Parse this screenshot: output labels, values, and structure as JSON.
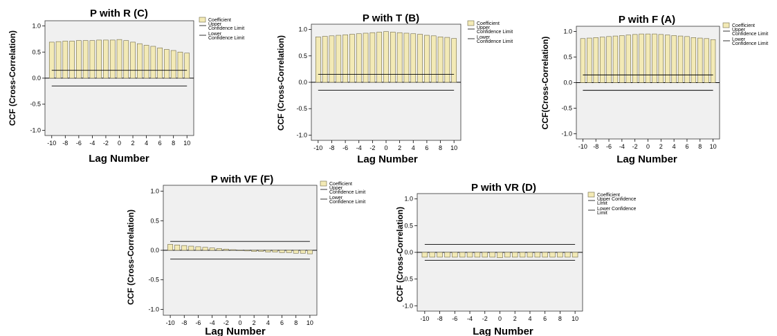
{
  "colors": {
    "bar_fill": "#f3eab6",
    "bar_stroke": "#6d6746",
    "plot_bg": "#f0f0f0"
  },
  "chart_data": [
    {
      "type": "bar",
      "title": "P with R (C)",
      "ylabel": "CCF (Cross-Correlation)",
      "xlabel": "Lag Number",
      "ylim": [
        -1.1,
        1.1
      ],
      "yticks": [
        "1.0",
        "0.5",
        "0.0",
        "-0.5",
        "-1.0"
      ],
      "xticks": [
        "-10",
        "-8",
        "-6",
        "-4",
        "-2",
        "0",
        "2",
        "4",
        "6",
        "8",
        "10"
      ],
      "categories": [
        -10,
        -9,
        -8,
        -7,
        -6,
        -5,
        -4,
        -3,
        -2,
        -1,
        0,
        1,
        2,
        3,
        4,
        5,
        6,
        7,
        8,
        9,
        10
      ],
      "series": [
        {
          "name": "Coefficient",
          "values": [
            0.69,
            0.7,
            0.71,
            0.71,
            0.72,
            0.72,
            0.72,
            0.73,
            0.73,
            0.73,
            0.74,
            0.72,
            0.69,
            0.66,
            0.63,
            0.61,
            0.58,
            0.55,
            0.53,
            0.5,
            0.48
          ]
        },
        {
          "name": "Upper Confidence Limit",
          "values": [
            0.15,
            0.15,
            0.15,
            0.15,
            0.15,
            0.15,
            0.15,
            0.15,
            0.15,
            0.15,
            0.15,
            0.15,
            0.15,
            0.15,
            0.15,
            0.15,
            0.15,
            0.15,
            0.15,
            0.15,
            0.15
          ]
        },
        {
          "name": "Lower Confidence Limit",
          "values": [
            -0.15,
            -0.15,
            -0.15,
            -0.15,
            -0.15,
            -0.15,
            -0.15,
            -0.15,
            -0.15,
            -0.15,
            -0.15,
            -0.15,
            -0.15,
            -0.15,
            -0.15,
            -0.15,
            -0.15,
            -0.15,
            -0.15,
            -0.15,
            -0.15
          ]
        }
      ],
      "legend": [
        "Coefficient",
        [
          "Upper",
          "Confidence Limit"
        ],
        [
          "Lower",
          "Confidence Limit"
        ]
      ]
    },
    {
      "type": "bar",
      "title": "P with T (B)",
      "ylabel": "CCF (Cross-Correlation)",
      "xlabel": "Lag Number",
      "ylim": [
        -1.1,
        1.1
      ],
      "yticks": [
        "1.0",
        "0.5",
        "0.0",
        "-0.5",
        "-1.0"
      ],
      "xticks": [
        "-10",
        "-8",
        "-6",
        "-4",
        "-2",
        "0",
        "2",
        "4",
        "6",
        "8",
        "10"
      ],
      "categories": [
        -10,
        -9,
        -8,
        -7,
        -6,
        -5,
        -4,
        -3,
        -2,
        -1,
        0,
        1,
        2,
        3,
        4,
        5,
        6,
        7,
        8,
        9,
        10
      ],
      "series": [
        {
          "name": "Coefficient",
          "values": [
            0.86,
            0.87,
            0.88,
            0.89,
            0.9,
            0.91,
            0.92,
            0.93,
            0.94,
            0.95,
            0.96,
            0.95,
            0.94,
            0.93,
            0.92,
            0.91,
            0.89,
            0.88,
            0.86,
            0.85,
            0.83
          ]
        },
        {
          "name": "Upper Confidence Limit",
          "values": [
            0.15,
            0.15,
            0.15,
            0.15,
            0.15,
            0.15,
            0.15,
            0.15,
            0.15,
            0.15,
            0.15,
            0.15,
            0.15,
            0.15,
            0.15,
            0.15,
            0.15,
            0.15,
            0.15,
            0.15,
            0.15
          ]
        },
        {
          "name": "Lower Confidence Limit",
          "values": [
            -0.15,
            -0.15,
            -0.15,
            -0.15,
            -0.15,
            -0.15,
            -0.15,
            -0.15,
            -0.15,
            -0.15,
            -0.15,
            -0.15,
            -0.15,
            -0.15,
            -0.15,
            -0.15,
            -0.15,
            -0.15,
            -0.15,
            -0.15,
            -0.15
          ]
        }
      ],
      "legend": [
        "Coefficient",
        [
          "Upper",
          "Confidence Limit"
        ],
        [
          "Lower",
          "Confidence Limit"
        ]
      ]
    },
    {
      "type": "bar",
      "title": "P with F   (A)",
      "ylabel": "CCF(Cross-Correlation)",
      "xlabel": "Lag Number",
      "ylim": [
        -1.1,
        1.1
      ],
      "yticks": [
        "1.0",
        "0.5",
        "0.0",
        "-0.5",
        "-1.0"
      ],
      "xticks": [
        "-10",
        "-8",
        "-6",
        "-4",
        "-2",
        "0",
        "2",
        "4",
        "6",
        "8",
        "10"
      ],
      "categories": [
        -10,
        -9,
        -8,
        -7,
        -6,
        -5,
        -4,
        -3,
        -2,
        -1,
        0,
        1,
        2,
        3,
        4,
        5,
        6,
        7,
        8,
        9,
        10
      ],
      "series": [
        {
          "name": "Coefficient",
          "values": [
            0.86,
            0.87,
            0.88,
            0.89,
            0.9,
            0.91,
            0.92,
            0.93,
            0.94,
            0.95,
            0.95,
            0.95,
            0.94,
            0.93,
            0.92,
            0.91,
            0.9,
            0.88,
            0.87,
            0.86,
            0.84
          ]
        },
        {
          "name": "Upper Confidence Limit",
          "values": [
            0.15,
            0.15,
            0.15,
            0.15,
            0.15,
            0.15,
            0.15,
            0.15,
            0.15,
            0.15,
            0.15,
            0.15,
            0.15,
            0.15,
            0.15,
            0.15,
            0.15,
            0.15,
            0.15,
            0.15,
            0.15
          ]
        },
        {
          "name": "Lower Confidence Limit",
          "values": [
            -0.15,
            -0.15,
            -0.15,
            -0.15,
            -0.15,
            -0.15,
            -0.15,
            -0.15,
            -0.15,
            -0.15,
            -0.15,
            -0.15,
            -0.15,
            -0.15,
            -0.15,
            -0.15,
            -0.15,
            -0.15,
            -0.15,
            -0.15,
            -0.15
          ]
        }
      ],
      "legend": [
        "Coefficient",
        [
          "Upper",
          "Confidence Limit"
        ],
        [
          "Lower",
          "Confidence Limit"
        ]
      ]
    },
    {
      "type": "bar",
      "title": "P with VF (F)",
      "ylabel": "CCF (Cross-Correlation)",
      "xlabel": "Lag Number",
      "ylim": [
        -1.1,
        1.1
      ],
      "yticks": [
        "1.0",
        "0.5",
        "0.0",
        "-0.5",
        "-1.0"
      ],
      "xticks": [
        "-10",
        "-8",
        "-6",
        "-4",
        "-2",
        "0",
        "2",
        "4",
        "6",
        "8",
        "10"
      ],
      "categories": [
        -10,
        -9,
        -8,
        -7,
        -6,
        -5,
        -4,
        -3,
        -2,
        -1,
        0,
        1,
        2,
        3,
        4,
        5,
        6,
        7,
        8,
        9,
        10
      ],
      "series": [
        {
          "name": "Coefficient",
          "values": [
            0.1,
            0.09,
            0.08,
            0.07,
            0.06,
            0.05,
            0.04,
            0.03,
            0.02,
            0.01,
            0.0,
            -0.01,
            -0.02,
            -0.02,
            -0.03,
            -0.03,
            -0.04,
            -0.04,
            -0.05,
            -0.05,
            -0.06
          ]
        },
        {
          "name": "Upper Confidence Limit",
          "values": [
            0.15,
            0.15,
            0.15,
            0.15,
            0.15,
            0.15,
            0.15,
            0.15,
            0.15,
            0.15,
            0.15,
            0.15,
            0.15,
            0.15,
            0.15,
            0.15,
            0.15,
            0.15,
            0.15,
            0.15,
            0.15
          ]
        },
        {
          "name": "Lower Confidence Limit",
          "values": [
            -0.15,
            -0.15,
            -0.15,
            -0.15,
            -0.15,
            -0.15,
            -0.15,
            -0.15,
            -0.15,
            -0.15,
            -0.15,
            -0.15,
            -0.15,
            -0.15,
            -0.15,
            -0.15,
            -0.15,
            -0.15,
            -0.15,
            -0.15,
            -0.15
          ]
        }
      ],
      "legend": [
        "Coefficient",
        [
          "Upper",
          "Confidence Limit"
        ],
        [
          "Lower",
          "Confidence Limit"
        ]
      ]
    },
    {
      "type": "bar",
      "title": "P with VR (D)",
      "ylabel": "CCF (Cross-Correlation)",
      "xlabel": "Lag Number",
      "ylim": [
        -1.1,
        1.1
      ],
      "yticks": [
        "1.0",
        "0.5",
        "0.0",
        "-0.5",
        "-1.0"
      ],
      "xticks": [
        "-10",
        "-8",
        "-6",
        "-4",
        "-2",
        "0",
        "2",
        "4",
        "6",
        "8",
        "10"
      ],
      "categories": [
        -10,
        -9,
        -8,
        -7,
        -6,
        -5,
        -4,
        -3,
        -2,
        -1,
        0,
        1,
        2,
        3,
        4,
        5,
        6,
        7,
        8,
        9,
        10
      ],
      "series": [
        {
          "name": "Coefficient",
          "values": [
            -0.09,
            -0.09,
            -0.09,
            -0.09,
            -0.09,
            -0.09,
            -0.09,
            -0.09,
            -0.09,
            -0.09,
            -0.1,
            -0.09,
            -0.09,
            -0.09,
            -0.09,
            -0.09,
            -0.09,
            -0.09,
            -0.09,
            -0.09,
            -0.09
          ]
        },
        {
          "name": "Upper Confidence Limit",
          "values": [
            0.15,
            0.15,
            0.15,
            0.15,
            0.15,
            0.15,
            0.15,
            0.15,
            0.15,
            0.15,
            0.15,
            0.15,
            0.15,
            0.15,
            0.15,
            0.15,
            0.15,
            0.15,
            0.15,
            0.15,
            0.15
          ]
        },
        {
          "name": "Lower Confidence Limit",
          "values": [
            -0.15,
            -0.15,
            -0.15,
            -0.15,
            -0.15,
            -0.15,
            -0.15,
            -0.15,
            -0.15,
            -0.15,
            -0.15,
            -0.15,
            -0.15,
            -0.15,
            -0.15,
            -0.15,
            -0.15,
            -0.15,
            -0.15,
            -0.15,
            -0.15
          ]
        }
      ],
      "legend": [
        "Coefficient",
        [
          "Upper Confidence",
          "Limit"
        ],
        [
          "Lower Confidence",
          "Limit"
        ]
      ]
    }
  ]
}
